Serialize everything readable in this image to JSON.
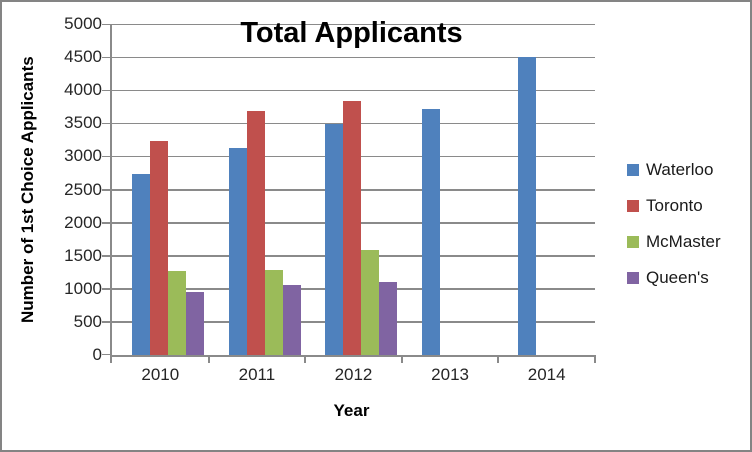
{
  "chart_data": {
    "type": "bar",
    "title": "Total Applicants",
    "xlabel": "Year",
    "ylabel": "Number of 1st Choice Applicants",
    "categories": [
      "2010",
      "2011",
      "2012",
      "2013",
      "2014"
    ],
    "series": [
      {
        "name": "Waterloo",
        "color": "#4F81BD",
        "values": [
          2740,
          3130,
          3490,
          3710,
          4500
        ]
      },
      {
        "name": "Toronto",
        "color": "#C0504D",
        "values": [
          3240,
          3690,
          3830,
          null,
          null
        ]
      },
      {
        "name": "McMaster",
        "color": "#9BBB59",
        "values": [
          1270,
          1280,
          1590,
          null,
          null
        ]
      },
      {
        "name": "Queen's",
        "color": "#8064A2",
        "values": [
          950,
          1060,
          1110,
          null,
          null
        ]
      }
    ],
    "ylim": [
      0,
      5000
    ],
    "ytick_step": 500,
    "grid": true,
    "legend_position": "right"
  },
  "styles": {
    "grid_color": "#8a8a8a",
    "axis_color": "#8a8a8a",
    "tick_text_color": "#262626",
    "title_color": "#000000",
    "frame_border_color": "#848484",
    "background": "#ffffff"
  }
}
